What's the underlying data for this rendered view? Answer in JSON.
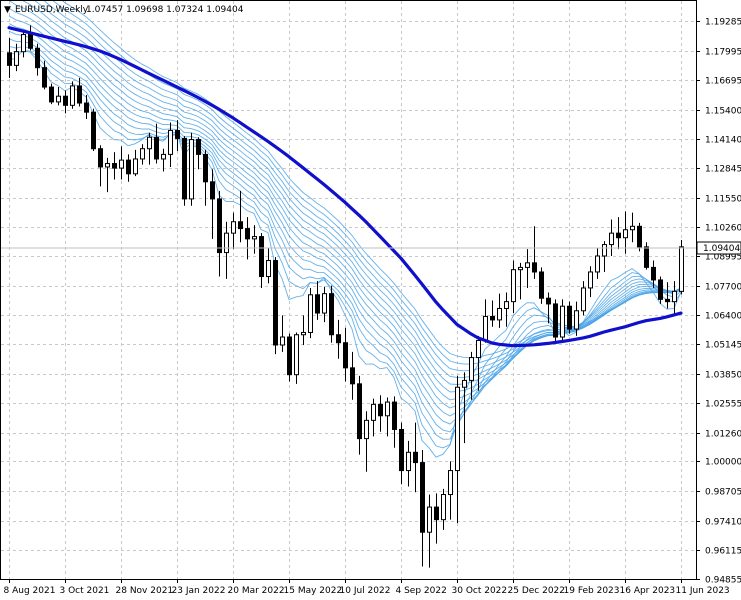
{
  "header": {
    "symbol": "EURUSD,Weekly",
    "ohlc": "1.07457 1.09698 1.07324 1.09404",
    "arrow": "▼"
  },
  "chart_data": {
    "type": "candlestick",
    "symbol": "EURUSD",
    "timeframe": "Weekly",
    "ylim": [
      0.9485,
      1.2017
    ],
    "y_ticks": [
      "1.19285",
      "1.17995",
      "1.16695",
      "1.15400",
      "1.14140",
      "1.12845",
      "1.11550",
      "1.10260",
      "1.08995",
      "1.07700",
      "1.06400",
      "1.05145",
      "1.03850",
      "1.02555",
      "1.01260",
      "1.00000",
      "0.98705",
      "0.97410",
      "0.96115",
      "0.94855"
    ],
    "current_price_label": "1.09404",
    "current_price": 1.09404,
    "x_ticks": [
      "8 Aug 2021",
      "3 Oct 2021",
      "28 Nov 2021",
      "23 Jan 2022",
      "20 Mar 2022",
      "15 May 2022",
      "10 Jul 2022",
      "4 Sep 2022",
      "30 Oct 2022",
      "25 Dec 2022",
      "19 Feb 2023",
      "16 Apr 2023",
      "11 Jun 2023"
    ],
    "grid": true,
    "colors": {
      "bull": "#ffffff",
      "bear": "#000000",
      "ribbon": "#4aa3e8",
      "thick_ma": "#1010cc",
      "grid": "#c8c8c8"
    },
    "candles": [
      [
        1.179,
        1.1855,
        1.168,
        1.1735
      ],
      [
        1.1735,
        1.183,
        1.171,
        1.1795
      ],
      [
        1.1795,
        1.1885,
        1.177,
        1.187
      ],
      [
        1.187,
        1.191,
        1.18,
        1.181
      ],
      [
        1.181,
        1.183,
        1.169,
        1.1725
      ],
      [
        1.1725,
        1.1755,
        1.163,
        1.164
      ],
      [
        1.164,
        1.1655,
        1.1565,
        1.1575
      ],
      [
        1.1575,
        1.164,
        1.156,
        1.16
      ],
      [
        1.16,
        1.1625,
        1.1525,
        1.156
      ],
      [
        1.156,
        1.1665,
        1.1545,
        1.1645
      ],
      [
        1.1645,
        1.168,
        1.1555,
        1.157
      ],
      [
        1.157,
        1.1605,
        1.15,
        1.153
      ],
      [
        1.153,
        1.1545,
        1.136,
        1.137
      ],
      [
        1.137,
        1.1385,
        1.1205,
        1.129
      ],
      [
        1.129,
        1.133,
        1.118,
        1.1305
      ],
      [
        1.1305,
        1.1355,
        1.1235,
        1.1285
      ],
      [
        1.1285,
        1.138,
        1.1235,
        1.132
      ],
      [
        1.132,
        1.1345,
        1.1225,
        1.126
      ],
      [
        1.126,
        1.1365,
        1.125,
        1.1325
      ],
      [
        1.1325,
        1.139,
        1.13,
        1.137
      ],
      [
        1.137,
        1.144,
        1.13,
        1.142
      ],
      [
        1.142,
        1.148,
        1.1305,
        1.1325
      ],
      [
        1.1325,
        1.137,
        1.127,
        1.1345
      ],
      [
        1.1345,
        1.1485,
        1.129,
        1.145
      ],
      [
        1.145,
        1.1495,
        1.136,
        1.1415
      ],
      [
        1.1415,
        1.1425,
        1.112,
        1.115
      ],
      [
        1.115,
        1.144,
        1.112,
        1.141
      ],
      [
        1.141,
        1.142,
        1.128,
        1.1345
      ],
      [
        1.1345,
        1.1365,
        1.112,
        1.1225
      ],
      [
        1.1225,
        1.128,
        1.0975,
        1.115
      ],
      [
        1.115,
        1.1185,
        1.081,
        1.0915
      ],
      [
        1.0915,
        1.105,
        1.08,
        1.1
      ],
      [
        1.1,
        1.109,
        1.093,
        1.105
      ],
      [
        1.105,
        1.1185,
        1.096,
        1.102
      ],
      [
        1.102,
        1.107,
        1.0885,
        1.0975
      ],
      [
        1.0975,
        1.1035,
        1.091,
        1.0985
      ],
      [
        1.0985,
        1.1,
        1.076,
        1.081
      ],
      [
        1.081,
        1.0935,
        1.078,
        1.088
      ],
      [
        1.088,
        1.0895,
        1.047,
        1.051
      ],
      [
        1.051,
        1.064,
        1.048,
        1.0545
      ],
      [
        1.0545,
        1.056,
        1.035,
        1.038
      ],
      [
        1.038,
        1.0565,
        1.034,
        1.0555
      ],
      [
        1.0555,
        1.064,
        1.051,
        1.0565
      ],
      [
        1.0565,
        1.076,
        1.054,
        1.073
      ],
      [
        1.073,
        1.079,
        1.062,
        1.065
      ],
      [
        1.065,
        1.0765,
        1.061,
        1.0735
      ],
      [
        1.0735,
        1.077,
        1.052,
        1.0555
      ],
      [
        1.0555,
        1.062,
        1.045,
        1.052
      ],
      [
        1.052,
        1.0585,
        1.035,
        1.041
      ],
      [
        1.041,
        1.048,
        1.027,
        1.034
      ],
      [
        1.034,
        1.0375,
        1.003,
        1.01
      ],
      [
        1.01,
        1.022,
        0.9955,
        1.018
      ],
      [
        1.018,
        1.0275,
        1.011,
        1.025
      ],
      [
        1.025,
        1.029,
        1.013,
        1.02
      ],
      [
        1.02,
        1.028,
        1.011,
        1.026
      ],
      [
        1.026,
        1.0285,
        1.006,
        1.014
      ],
      [
        1.014,
        1.017,
        0.99,
        0.996
      ],
      [
        0.996,
        1.009,
        0.989,
        1.004
      ],
      [
        1.004,
        1.017,
        0.9865,
        0.9995
      ],
      [
        0.9995,
        1.005,
        0.954,
        0.969
      ],
      [
        0.969,
        0.9855,
        0.9535,
        0.98
      ],
      [
        0.98,
        0.986,
        0.964,
        0.9745
      ],
      [
        0.9745,
        0.988,
        0.97,
        0.9855
      ],
      [
        0.9855,
        1.0,
        0.9745,
        0.996
      ],
      [
        0.996,
        1.0375,
        0.973,
        1.0325
      ],
      [
        1.0325,
        1.039,
        1.008,
        1.0355
      ],
      [
        1.0355,
        1.048,
        1.027,
        1.0455
      ],
      [
        1.0455,
        1.055,
        1.031,
        1.053
      ],
      [
        1.053,
        1.071,
        1.052,
        1.0635
      ],
      [
        1.0635,
        1.0705,
        1.059,
        1.062
      ],
      [
        1.062,
        1.0735,
        1.0585,
        1.067
      ],
      [
        1.067,
        1.074,
        1.059,
        1.07
      ],
      [
        1.07,
        1.088,
        1.065,
        1.084
      ],
      [
        1.084,
        1.087,
        1.071,
        1.085
      ],
      [
        1.085,
        1.093,
        1.076,
        1.087
      ],
      [
        1.087,
        1.103,
        1.08,
        1.083
      ],
      [
        1.083,
        1.085,
        1.069,
        1.0715
      ],
      [
        1.0715,
        1.074,
        1.0605,
        1.069
      ],
      [
        1.069,
        1.071,
        1.0525,
        1.0545
      ],
      [
        1.0545,
        1.071,
        1.052,
        1.068
      ],
      [
        1.068,
        1.07,
        1.056,
        1.058
      ],
      [
        1.058,
        1.07,
        1.055,
        1.066
      ],
      [
        1.066,
        1.079,
        1.064,
        1.076
      ],
      [
        1.076,
        1.0855,
        1.072,
        1.083
      ],
      [
        1.083,
        1.0935,
        1.08,
        1.09
      ],
      [
        1.09,
        1.0965,
        1.083,
        1.095
      ],
      [
        1.095,
        1.106,
        1.09,
        1.1
      ],
      [
        1.1,
        1.107,
        1.093,
        1.098
      ],
      [
        1.098,
        1.1095,
        1.091,
        1.1015
      ],
      [
        1.1015,
        1.109,
        1.096,
        1.103
      ],
      [
        1.103,
        1.1045,
        1.092,
        1.094
      ],
      [
        1.094,
        1.096,
        1.084,
        1.085
      ],
      [
        1.085,
        1.088,
        1.076,
        1.0795
      ],
      [
        1.0795,
        1.081,
        1.069,
        1.071
      ],
      [
        1.071,
        1.0785,
        1.067,
        1.07
      ],
      [
        1.07,
        1.079,
        1.064,
        1.0745
      ],
      [
        1.0745,
        1.097,
        1.0732,
        1.094
      ]
    ],
    "thick_ma": [
      1.19,
      1.188,
      1.186,
      1.184,
      1.182,
      1.1795,
      1.176,
      1.172,
      1.168,
      1.164,
      1.16,
      1.1555,
      1.1505,
      1.145,
      1.1395,
      1.1335,
      1.127,
      1.1205,
      1.1135,
      1.106,
      1.0975,
      1.089,
      1.079,
      1.0685,
      1.06,
      1.0545,
      1.0515,
      1.0507,
      1.051,
      1.0518,
      1.053,
      1.0545,
      1.057,
      1.059,
      1.0615,
      1.0628,
      1.065
    ],
    "ribbon_count": 14
  }
}
